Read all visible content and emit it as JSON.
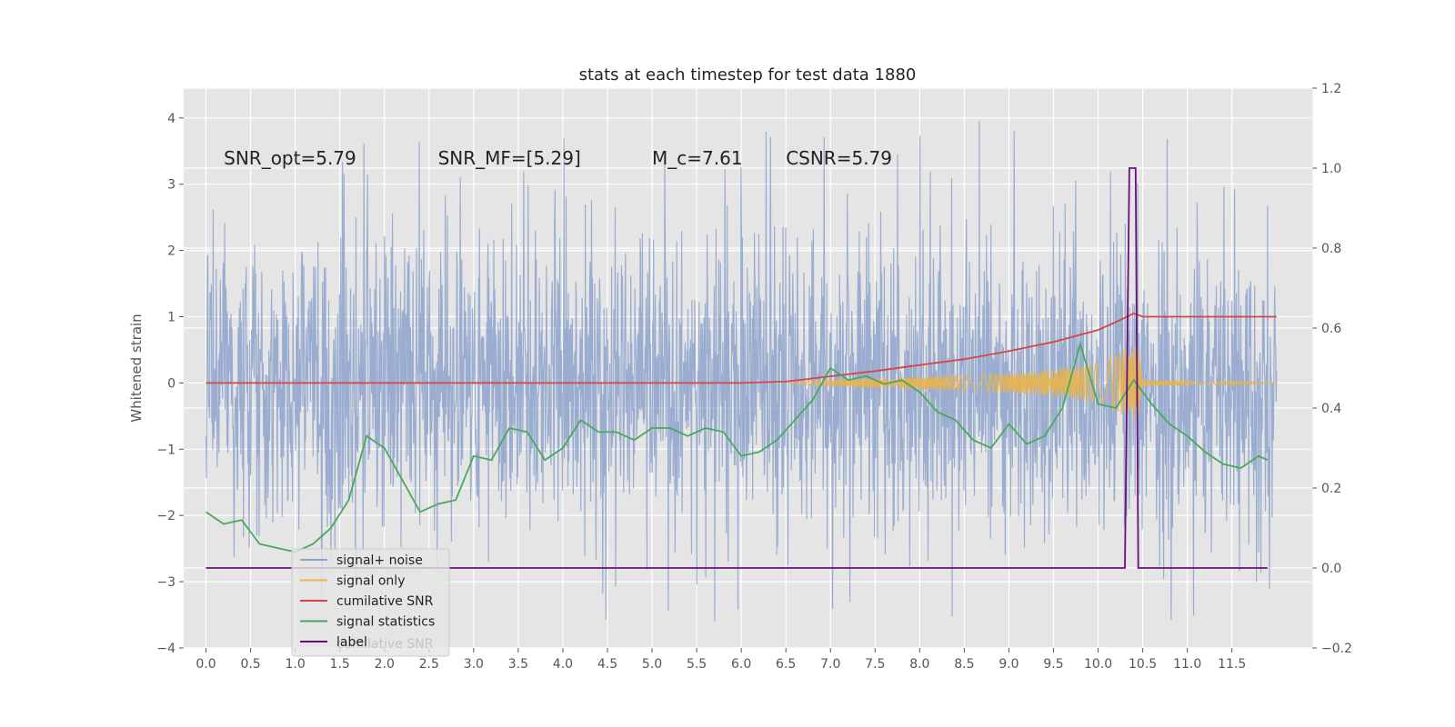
{
  "chart_data": {
    "type": "line",
    "title": "stats at each timestep for test data 1880",
    "xlabel": "",
    "ylabel": "Whitened strain",
    "ylabel_right": "",
    "xlim": [
      -0.25,
      12.4
    ],
    "ylim": [
      -4,
      4.45
    ],
    "ylim_right": [
      -0.2,
      1.2
    ],
    "x_ticks": [
      "0.0",
      "0.5",
      "1.0",
      "1.5",
      "2.0",
      "2.5",
      "3.0",
      "3.5",
      "4.0",
      "4.5",
      "5.0",
      "5.5",
      "6.0",
      "6.5",
      "7.0",
      "7.5",
      "8.0",
      "8.5",
      "9.0",
      "9.5",
      "10.0",
      "10.5",
      "11.0",
      "11.5"
    ],
    "y_ticks": [
      "−4",
      "−3",
      "−2",
      "−1",
      "0",
      "1",
      "2",
      "3",
      "4"
    ],
    "y_ticks_right": [
      "−0.2",
      "0.0",
      "0.2",
      "0.4",
      "0.6",
      "0.8",
      "1.0",
      "1.2"
    ],
    "grid": true,
    "legend_position": "lower-left",
    "annotations": [
      {
        "text": "SNR_opt=5.79",
        "x": 0.2,
        "y": 3.3
      },
      {
        "text": "SNR_MF=[5.29]",
        "x": 2.6,
        "y": 3.3
      },
      {
        "text": "M_c=7.61",
        "x": 5.0,
        "y": 3.3
      },
      {
        "text": "CSNR=5.79",
        "x": 6.5,
        "y": 3.3
      }
    ],
    "series": [
      {
        "name": "signal+ noise",
        "color": "#8da3cc",
        "kind": "noise",
        "x_range": [
          0,
          12.0
        ],
        "noise_amplitude": 2.0,
        "peak_max": 4.1,
        "peak_min": -3.6
      },
      {
        "name": "signal only",
        "color": "#e8b44e",
        "kind": "chirp",
        "x_range": [
          6.5,
          12.0
        ],
        "envelope": [
          [
            6.5,
            0.02
          ],
          [
            7.0,
            0.05
          ],
          [
            7.5,
            0.08
          ],
          [
            8.0,
            0.1
          ],
          [
            8.5,
            0.12
          ],
          [
            9.0,
            0.15
          ],
          [
            9.5,
            0.2
          ],
          [
            10.0,
            0.3
          ],
          [
            10.3,
            0.5
          ],
          [
            10.45,
            0.6
          ],
          [
            10.5,
            0.05
          ],
          [
            12.0,
            0.0
          ]
        ]
      },
      {
        "name": "cumilative SNR",
        "color": "#d64545",
        "axis": "left",
        "x": [
          0,
          6.0,
          6.5,
          7.0,
          7.5,
          8.0,
          8.5,
          9.0,
          9.5,
          10.0,
          10.2,
          10.4,
          10.5,
          12.0
        ],
        "values": [
          0,
          0,
          0.02,
          0.1,
          0.18,
          0.27,
          0.36,
          0.48,
          0.62,
          0.8,
          0.92,
          1.05,
          1.0,
          1.0
        ]
      },
      {
        "name": "signal statistics",
        "color": "#4aa85c",
        "axis": "right",
        "x": [
          0,
          0.2,
          0.4,
          0.6,
          0.8,
          1.0,
          1.2,
          1.4,
          1.6,
          1.8,
          2.0,
          2.2,
          2.4,
          2.6,
          2.8,
          3.0,
          3.2,
          3.4,
          3.6,
          3.8,
          4.0,
          4.2,
          4.4,
          4.6,
          4.8,
          5.0,
          5.2,
          5.4,
          5.6,
          5.8,
          6.0,
          6.2,
          6.4,
          6.6,
          6.8,
          7.0,
          7.2,
          7.4,
          7.6,
          7.8,
          8.0,
          8.2,
          8.4,
          8.6,
          8.8,
          9.0,
          9.2,
          9.4,
          9.6,
          9.8,
          10.0,
          10.2,
          10.4,
          10.6,
          10.8,
          11.0,
          11.2,
          11.4,
          11.6,
          11.8,
          11.9
        ],
        "values": [
          0.14,
          0.11,
          0.12,
          0.06,
          0.05,
          0.04,
          0.06,
          0.1,
          0.17,
          0.33,
          0.3,
          0.22,
          0.14,
          0.16,
          0.17,
          0.28,
          0.27,
          0.35,
          0.34,
          0.27,
          0.3,
          0.37,
          0.34,
          0.34,
          0.32,
          0.35,
          0.35,
          0.33,
          0.35,
          0.34,
          0.28,
          0.29,
          0.32,
          0.37,
          0.42,
          0.5,
          0.47,
          0.48,
          0.46,
          0.47,
          0.44,
          0.39,
          0.37,
          0.32,
          0.3,
          0.36,
          0.31,
          0.33,
          0.4,
          0.56,
          0.41,
          0.4,
          0.47,
          0.41,
          0.36,
          0.33,
          0.29,
          0.26,
          0.25,
          0.28,
          0.27
        ]
      },
      {
        "name": "label",
        "color": "#6a0f7a",
        "axis": "right",
        "x": [
          0,
          10.3,
          10.35,
          10.42,
          10.45,
          10.5,
          11.9
        ],
        "values": [
          0,
          0,
          1.0,
          1.0,
          0,
          0,
          0
        ]
      }
    ],
    "legend_overlap_text": "cumilative SNR"
  }
}
